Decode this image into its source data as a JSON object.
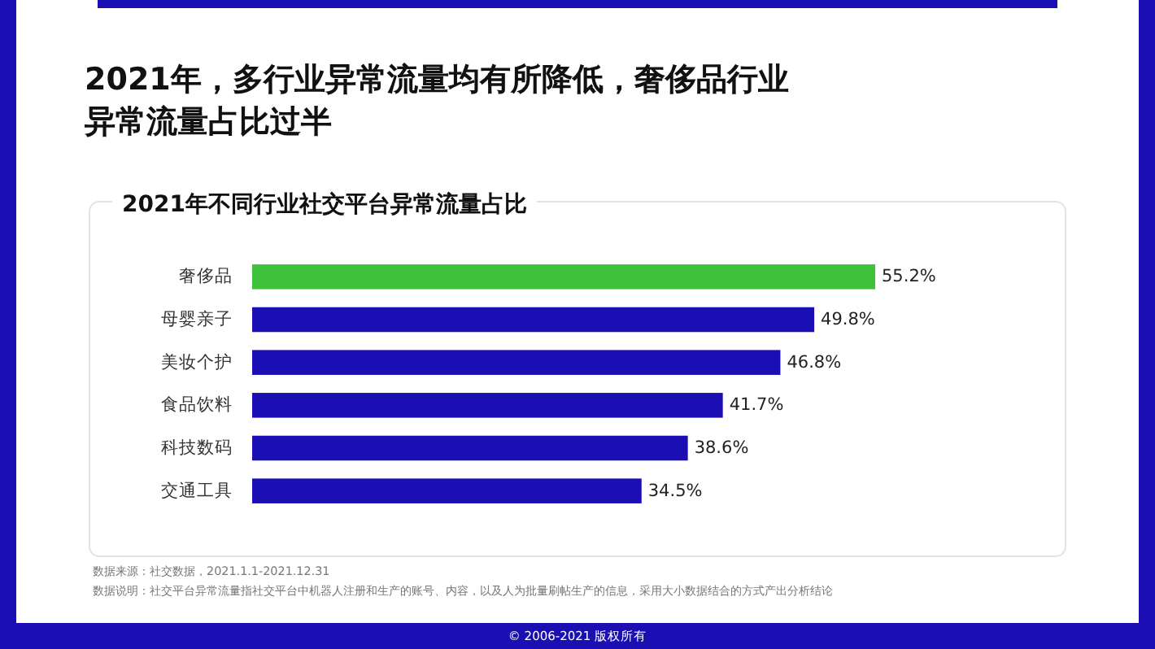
{
  "chart_data": {
    "type": "bar",
    "orientation": "horizontal",
    "title": "2021年，多行业异常流量均有所降低，奢侈品行业异常流量占比过半",
    "subtitle": "2021年不同行业社交平台异常流量占比",
    "categories": [
      "奢侈品",
      "母婴亲子",
      "美妆个护",
      "食品饮料",
      "科技数码",
      "交通工具"
    ],
    "values": [
      55.2,
      49.8,
      46.8,
      41.7,
      38.6,
      34.5
    ],
    "value_labels": [
      "55.2%",
      "49.8%",
      "46.8%",
      "41.7%",
      "38.6%",
      "34.5%"
    ],
    "colors": [
      "#3dc23a",
      "#1b0fb3",
      "#1b0fb3",
      "#1b0fb3",
      "#1b0fb3",
      "#1b0fb3"
    ],
    "annotations": [
      "数据来源：社交数据，2021.1.1-2021.12.31",
      "数据说明：社交平台异常流量指社交平台中机器人注册和生产的账号、内容，以及人为批量刷帖生产的信息，采用大小数据结合的方式产出分析结论",
      "© 2006-2021 版权所有"
    ]
  }
}
